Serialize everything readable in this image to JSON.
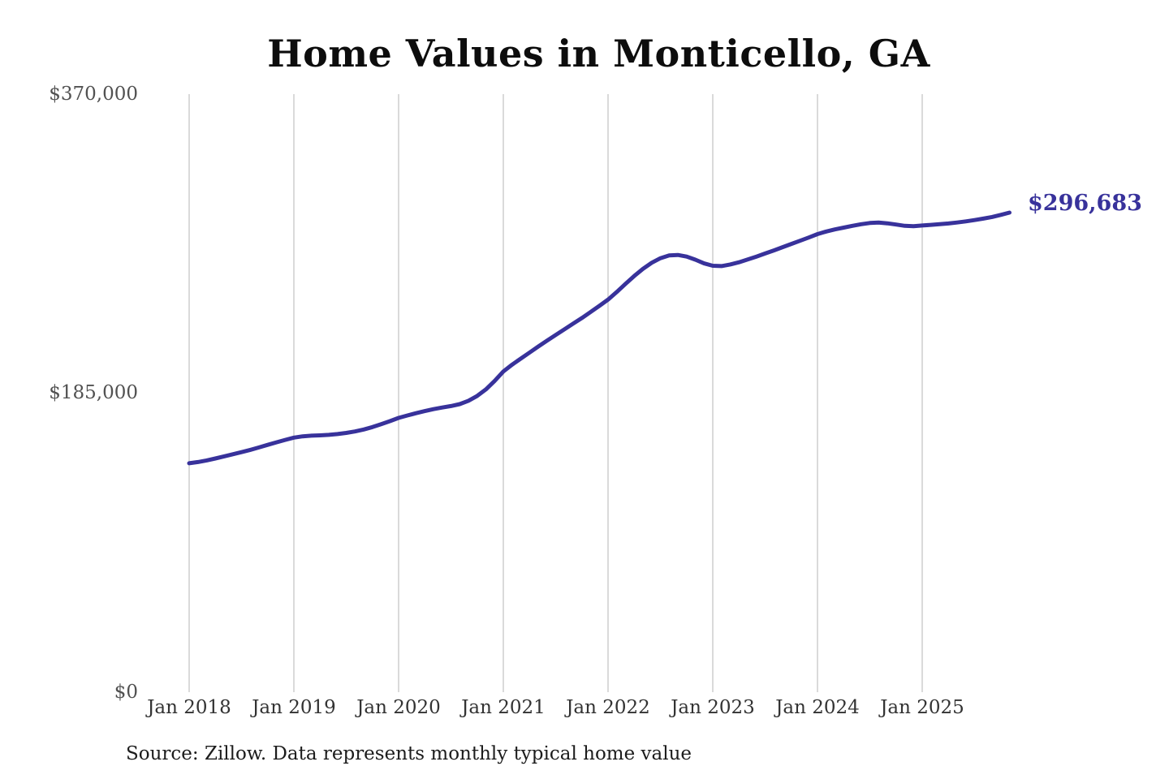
{
  "chart_data": {
    "type": "line",
    "title": "Home Values in Monticello, GA",
    "source": "Source: Zillow. Data represents monthly typical home value",
    "series_name": "Monthly typical home value",
    "start_month": "2018-01",
    "end_month": "2025-11",
    "x_tick_labels": [
      "Jan 2018",
      "Jan 2019",
      "Jan 2020",
      "Jan 2021",
      "Jan 2022",
      "Jan 2023",
      "Jan 2024",
      "Jan 2025"
    ],
    "x_tick_month_indices": [
      0,
      12,
      24,
      36,
      48,
      60,
      72,
      84
    ],
    "y_ticks": [
      {
        "label": "$370,000",
        "value": 370000
      },
      {
        "label": "$185,000",
        "value": 185000
      },
      {
        "label": "$0",
        "value": 0
      }
    ],
    "ylim": [
      0,
      370000
    ],
    "grid": "vertical-only",
    "legend": "none",
    "end_label": "$296,683",
    "latest_value": 296683,
    "colors": {
      "line": "#38329b",
      "grid": "#cbcbcb",
      "y_tick_text": "#515151",
      "x_tick_text": "#333333",
      "title_text": "#0d0d0d",
      "source_text": "#1c1c1c",
      "end_label_text": "#38329b",
      "background": "#ffffff"
    },
    "values": [
      141600,
      142400,
      143400,
      144600,
      145900,
      147200,
      148500,
      149900,
      151400,
      153000,
      154600,
      156100,
      157500,
      158300,
      158700,
      158900,
      159200,
      159700,
      160400,
      161300,
      162500,
      164000,
      165800,
      167700,
      169700,
      171200,
      172600,
      173900,
      175100,
      176100,
      177000,
      178200,
      180300,
      183300,
      187300,
      192600,
      198400,
      202600,
      206400,
      210100,
      213800,
      217500,
      221000,
      224500,
      228000,
      231500,
      235200,
      239000,
      242900,
      247600,
      252600,
      257500,
      261900,
      265700,
      268500,
      270200,
      270500,
      269500,
      267600,
      265300,
      263800,
      263600,
      264600,
      266000,
      267700,
      269500,
      271400,
      273300,
      275300,
      277300,
      279300,
      281300,
      283400,
      285000,
      286300,
      287400,
      288500,
      289500,
      290300,
      290600,
      290100,
      289300,
      288500,
      288300,
      288700,
      289100,
      289500,
      290000,
      290600,
      291300,
      292100,
      293000,
      294000,
      295300,
      296683
    ]
  }
}
